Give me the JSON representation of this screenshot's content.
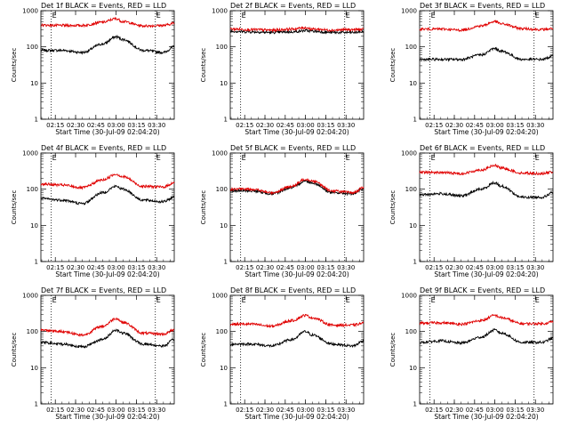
{
  "figure": {
    "background": "#ffffff",
    "colors": {
      "events": "#000000",
      "lld": "#e00000",
      "axes": "#000000"
    }
  },
  "chart_data": [
    {
      "type": "line",
      "title": "Det 1f BLACK = Events, RED = LLD",
      "ylabel": "Counts/sec",
      "xlabel": "Start Time (30-Jul-09 02:04:20)",
      "xlim": [
        "02:04:20",
        "03:43:00"
      ],
      "ylim": [
        1,
        1000
      ],
      "yscale": "log",
      "grid": false,
      "x_ticks": [
        "02:15",
        "02:30",
        "02:45",
        "03:00",
        "03:15",
        "03:30"
      ],
      "y_ticks": [
        "1",
        "10",
        "100",
        "1000"
      ],
      "markers": [
        {
          "time": "02:12",
          "label": "E"
        },
        {
          "time": "03:29",
          "label": "E"
        }
      ],
      "series": [
        {
          "name": "Events",
          "color": "#000000",
          "x": [
            "02:04",
            "02:20",
            "02:35",
            "02:50",
            "03:00",
            "03:05",
            "03:20",
            "03:35",
            "03:43"
          ],
          "values": [
            80,
            80,
            70,
            120,
            190,
            160,
            80,
            70,
            100
          ]
        },
        {
          "name": "LLD",
          "color": "#e00000",
          "x": [
            "02:04",
            "02:20",
            "02:35",
            "02:50",
            "03:00",
            "03:05",
            "03:20",
            "03:35",
            "03:43"
          ],
          "values": [
            400,
            390,
            390,
            480,
            600,
            500,
            380,
            390,
            450
          ]
        }
      ]
    },
    {
      "type": "line",
      "title": "Det 2f BLACK = Events, RED = LLD",
      "ylabel": "Counts/sec",
      "xlabel": "Start Time (30-Jul-09 02:04:20)",
      "xlim": [
        "02:04:20",
        "03:43:00"
      ],
      "ylim": [
        1,
        1000
      ],
      "yscale": "log",
      "grid": false,
      "x_ticks": [
        "02:15",
        "02:30",
        "02:45",
        "03:00",
        "03:15",
        "03:30"
      ],
      "y_ticks": [
        "1",
        "10",
        "100",
        "1000"
      ],
      "markers": [
        {
          "time": "02:12",
          "label": "E"
        },
        {
          "time": "03:29",
          "label": "E"
        }
      ],
      "series": [
        {
          "name": "Events",
          "color": "#000000",
          "x": [
            "02:04",
            "02:20",
            "02:35",
            "02:50",
            "03:00",
            "03:05",
            "03:20",
            "03:35",
            "03:43"
          ],
          "values": [
            270,
            260,
            250,
            260,
            280,
            270,
            250,
            250,
            260
          ]
        },
        {
          "name": "LLD",
          "color": "#e00000",
          "x": [
            "02:04",
            "02:20",
            "02:35",
            "02:50",
            "03:00",
            "03:05",
            "03:20",
            "03:35",
            "03:43"
          ],
          "values": [
            310,
            300,
            290,
            310,
            340,
            310,
            290,
            300,
            300
          ]
        }
      ]
    },
    {
      "type": "line",
      "title": "Det 3f BLACK = Events, RED = LLD",
      "ylabel": "Counts/sec",
      "xlabel": "Start Time (30-Jul-09 02:04:20)",
      "xlim": [
        "02:04:20",
        "03:43:00"
      ],
      "ylim": [
        1,
        1000
      ],
      "yscale": "log",
      "grid": false,
      "x_ticks": [
        "02:15",
        "02:30",
        "02:45",
        "03:00",
        "03:15",
        "03:30"
      ],
      "y_ticks": [
        "1",
        "10",
        "100",
        "1000"
      ],
      "markers": [
        {
          "time": "02:12",
          "label": "E"
        },
        {
          "time": "03:29",
          "label": "E"
        }
      ],
      "series": [
        {
          "name": "Events",
          "color": "#000000",
          "x": [
            "02:04",
            "02:20",
            "02:35",
            "02:50",
            "03:00",
            "03:05",
            "03:20",
            "03:35",
            "03:43"
          ],
          "values": [
            45,
            45,
            45,
            60,
            90,
            75,
            45,
            45,
            55
          ]
        },
        {
          "name": "LLD",
          "color": "#e00000",
          "x": [
            "02:04",
            "02:20",
            "02:35",
            "02:50",
            "03:00",
            "03:05",
            "03:20",
            "03:35",
            "03:43"
          ],
          "values": [
            310,
            310,
            290,
            380,
            500,
            430,
            320,
            300,
            320
          ]
        }
      ]
    },
    {
      "type": "line",
      "title": "Det 4f BLACK = Events, RED = LLD",
      "ylabel": "Counts/sec",
      "xlabel": "Start Time (30-Jul-09 02:04:20)",
      "xlim": [
        "02:04:20",
        "03:43:00"
      ],
      "ylim": [
        1,
        1000
      ],
      "yscale": "log",
      "grid": false,
      "x_ticks": [
        "02:15",
        "02:30",
        "02:45",
        "03:00",
        "03:15",
        "03:30"
      ],
      "y_ticks": [
        "1",
        "10",
        "100",
        "1000"
      ],
      "markers": [
        {
          "time": "02:12",
          "label": "E"
        },
        {
          "time": "03:29",
          "label": "E"
        }
      ],
      "series": [
        {
          "name": "Events",
          "color": "#000000",
          "x": [
            "02:04",
            "02:20",
            "02:35",
            "02:50",
            "03:00",
            "03:05",
            "03:20",
            "03:35",
            "03:43"
          ],
          "values": [
            55,
            50,
            40,
            80,
            120,
            100,
            50,
            45,
            60
          ]
        },
        {
          "name": "LLD",
          "color": "#e00000",
          "x": [
            "02:04",
            "02:20",
            "02:35",
            "02:50",
            "03:00",
            "03:05",
            "03:20",
            "03:35",
            "03:43"
          ],
          "values": [
            140,
            130,
            110,
            180,
            260,
            220,
            120,
            115,
            150
          ]
        }
      ]
    },
    {
      "type": "line",
      "title": "Det 5f BLACK = Events, RED = LLD",
      "ylabel": "Counts/sec",
      "xlabel": "Start Time (30-Jul-09 02:04:20)",
      "xlim": [
        "02:04:20",
        "03:43:00"
      ],
      "ylim": [
        1,
        1000
      ],
      "yscale": "log",
      "grid": false,
      "x_ticks": [
        "02:15",
        "02:30",
        "02:45",
        "03:00",
        "03:15",
        "03:30"
      ],
      "y_ticks": [
        "1",
        "10",
        "100",
        "1000"
      ],
      "markers": [
        {
          "time": "02:12",
          "label": "E"
        },
        {
          "time": "03:29",
          "label": "E"
        }
      ],
      "series": [
        {
          "name": "Events",
          "color": "#000000",
          "x": [
            "02:04",
            "02:20",
            "02:35",
            "02:50",
            "03:00",
            "03:05",
            "03:20",
            "03:35",
            "03:43"
          ],
          "values": [
            90,
            90,
            75,
            110,
            170,
            150,
            80,
            75,
            100
          ]
        },
        {
          "name": "LLD",
          "color": "#e00000",
          "x": [
            "02:04",
            "02:20",
            "02:35",
            "02:50",
            "03:00",
            "03:05",
            "03:20",
            "03:35",
            "03:43"
          ],
          "values": [
            100,
            100,
            80,
            120,
            190,
            170,
            90,
            80,
            110
          ]
        }
      ]
    },
    {
      "type": "line",
      "title": "Det 6f BLACK = Events, RED = LLD",
      "ylabel": "Counts/sec",
      "xlabel": "Start Time (30-Jul-09 02:04:20)",
      "xlim": [
        "02:04:20",
        "03:43:00"
      ],
      "ylim": [
        1,
        1000
      ],
      "yscale": "log",
      "grid": false,
      "x_ticks": [
        "02:15",
        "02:30",
        "02:45",
        "03:00",
        "03:15",
        "03:30"
      ],
      "y_ticks": [
        "1",
        "10",
        "100",
        "1000"
      ],
      "markers": [
        {
          "time": "02:12",
          "label": "E"
        },
        {
          "time": "03:29",
          "label": "E"
        }
      ],
      "series": [
        {
          "name": "Events",
          "color": "#000000",
          "x": [
            "02:04",
            "02:20",
            "02:35",
            "02:50",
            "03:00",
            "03:05",
            "03:20",
            "03:35",
            "03:43"
          ],
          "values": [
            70,
            75,
            65,
            100,
            150,
            120,
            60,
            60,
            80
          ]
        },
        {
          "name": "LLD",
          "color": "#e00000",
          "x": [
            "02:04",
            "02:20",
            "02:35",
            "02:50",
            "03:00",
            "03:05",
            "03:20",
            "03:35",
            "03:43"
          ],
          "values": [
            290,
            290,
            270,
            340,
            450,
            380,
            280,
            270,
            300
          ]
        }
      ]
    },
    {
      "type": "line",
      "title": "Det 7f BLACK = Events, RED = LLD",
      "ylabel": "Counts/sec",
      "xlabel": "Start Time (30-Jul-09 02:04:20)",
      "xlim": [
        "02:04:20",
        "03:43:00"
      ],
      "ylim": [
        1,
        1000
      ],
      "yscale": "log",
      "grid": false,
      "x_ticks": [
        "02:15",
        "02:30",
        "02:45",
        "03:00",
        "03:15",
        "03:30"
      ],
      "y_ticks": [
        "1",
        "10",
        "100",
        "1000"
      ],
      "markers": [
        {
          "time": "02:12",
          "label": "E"
        },
        {
          "time": "03:29",
          "label": "E"
        }
      ],
      "series": [
        {
          "name": "Events",
          "color": "#000000",
          "x": [
            "02:04",
            "02:20",
            "02:35",
            "02:50",
            "03:00",
            "03:05",
            "03:20",
            "03:35",
            "03:43"
          ],
          "values": [
            50,
            45,
            38,
            60,
            110,
            90,
            45,
            40,
            60
          ]
        },
        {
          "name": "LLD",
          "color": "#e00000",
          "x": [
            "02:04",
            "02:20",
            "02:35",
            "02:50",
            "03:00",
            "03:05",
            "03:20",
            "03:35",
            "03:43"
          ],
          "values": [
            110,
            100,
            80,
            140,
            230,
            180,
            90,
            85,
            110
          ]
        }
      ]
    },
    {
      "type": "line",
      "title": "Det 8f BLACK = Events, RED = LLD",
      "ylabel": "Counts/sec",
      "xlabel": "Start Time (30-Jul-09 02:04:20)",
      "xlim": [
        "02:04:20",
        "03:43:00"
      ],
      "ylim": [
        1,
        1000
      ],
      "yscale": "log",
      "grid": false,
      "x_ticks": [
        "02:15",
        "02:30",
        "02:45",
        "03:00",
        "03:15",
        "03:30"
      ],
      "y_ticks": [
        "1",
        "10",
        "100",
        "1000"
      ],
      "markers": [
        {
          "time": "02:12",
          "label": "E"
        },
        {
          "time": "03:29",
          "label": "E"
        }
      ],
      "series": [
        {
          "name": "Events",
          "color": "#000000",
          "x": [
            "02:04",
            "02:20",
            "02:35",
            "02:50",
            "03:00",
            "03:05",
            "03:20",
            "03:35",
            "03:43"
          ],
          "values": [
            45,
            45,
            40,
            60,
            100,
            80,
            45,
            40,
            55
          ]
        },
        {
          "name": "LLD",
          "color": "#e00000",
          "x": [
            "02:04",
            "02:20",
            "02:35",
            "02:50",
            "03:00",
            "03:05",
            "03:20",
            "03:35",
            "03:43"
          ],
          "values": [
            160,
            160,
            140,
            200,
            280,
            240,
            150,
            150,
            170
          ]
        }
      ]
    },
    {
      "type": "line",
      "title": "Det 9f BLACK = Events, RED = LLD",
      "ylabel": "Counts/sec",
      "xlabel": "Start Time (30-Jul-09 02:04:20)",
      "xlim": [
        "02:04:20",
        "03:43:00"
      ],
      "ylim": [
        1,
        1000
      ],
      "yscale": "log",
      "grid": false,
      "x_ticks": [
        "02:15",
        "02:30",
        "02:45",
        "03:00",
        "03:15",
        "03:30"
      ],
      "y_ticks": [
        "1",
        "10",
        "100",
        "1000"
      ],
      "markers": [
        {
          "time": "02:12",
          "label": "E"
        },
        {
          "time": "03:29",
          "label": "E"
        }
      ],
      "series": [
        {
          "name": "Events",
          "color": "#000000",
          "x": [
            "02:04",
            "02:20",
            "02:35",
            "02:50",
            "03:00",
            "03:05",
            "03:20",
            "03:35",
            "03:43"
          ],
          "values": [
            50,
            55,
            48,
            70,
            110,
            90,
            50,
            50,
            65
          ]
        },
        {
          "name": "LLD",
          "color": "#e00000",
          "x": [
            "02:04",
            "02:20",
            "02:35",
            "02:50",
            "03:00",
            "03:05",
            "03:20",
            "03:35",
            "03:43"
          ],
          "values": [
            170,
            175,
            160,
            200,
            280,
            240,
            165,
            165,
            185
          ]
        }
      ]
    }
  ]
}
